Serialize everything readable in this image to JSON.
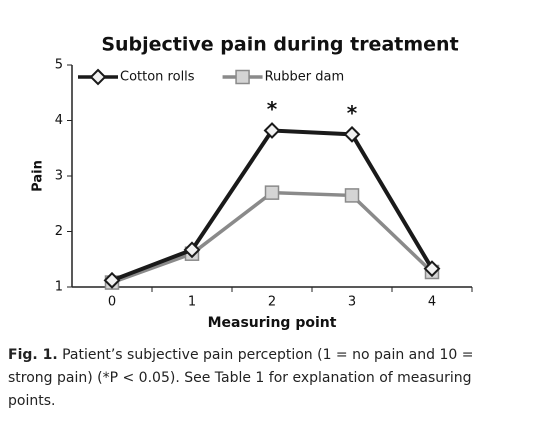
{
  "chart_data": {
    "type": "line",
    "title": "Subjective pain during treatment",
    "x_label": "Measuring point",
    "y_label": "Pain",
    "categories": [
      "0",
      "1",
      "2",
      "3",
      "4"
    ],
    "series": [
      {
        "name": "Cotton rolls",
        "color": "#1a1a1a",
        "marker": "diamond",
        "values": [
          1.12,
          1.67,
          3.82,
          3.75,
          1.33
        ]
      },
      {
        "name": "Rubber dam",
        "color": "#8a8a8a",
        "marker": "square",
        "values": [
          1.08,
          1.6,
          2.7,
          2.65,
          1.27
        ]
      }
    ],
    "ylim": [
      1,
      5
    ],
    "yticks": [
      1,
      2,
      3,
      4,
      5
    ],
    "grid": false,
    "legend": "top-left",
    "annotations": [
      {
        "text": "*",
        "category": "2"
      },
      {
        "text": "*",
        "category": "3"
      }
    ]
  },
  "caption": {
    "label": "Fig. 1.",
    "text": "Patient’s subjective pain perception (1 = no pain and 10 = strong pain) (*P < 0.05). See Table 1 for explanation of measuring points."
  }
}
